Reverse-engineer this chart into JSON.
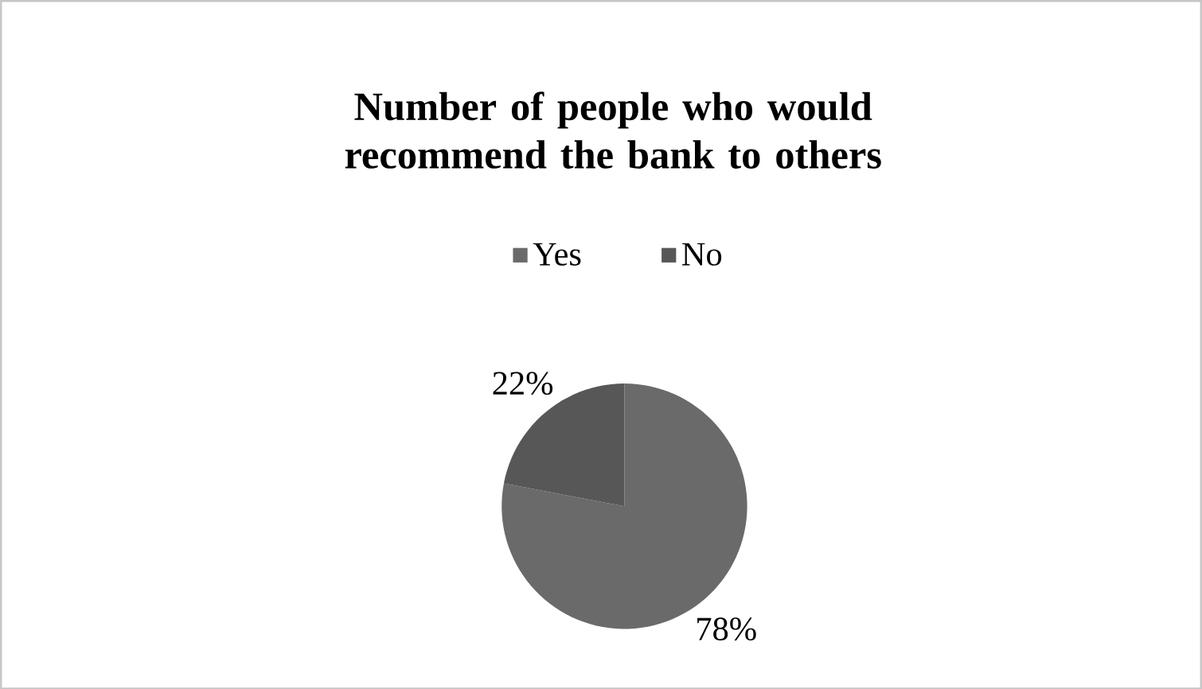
{
  "chart_data": {
    "type": "pie",
    "title": "Number of people who would recommend the bank to others",
    "categories": [
      "Yes",
      "No"
    ],
    "values": [
      78,
      22
    ],
    "colors": [
      "#6a6a6a",
      "#575757"
    ],
    "value_labels": [
      "78%",
      "22%"
    ],
    "legend": "top"
  }
}
